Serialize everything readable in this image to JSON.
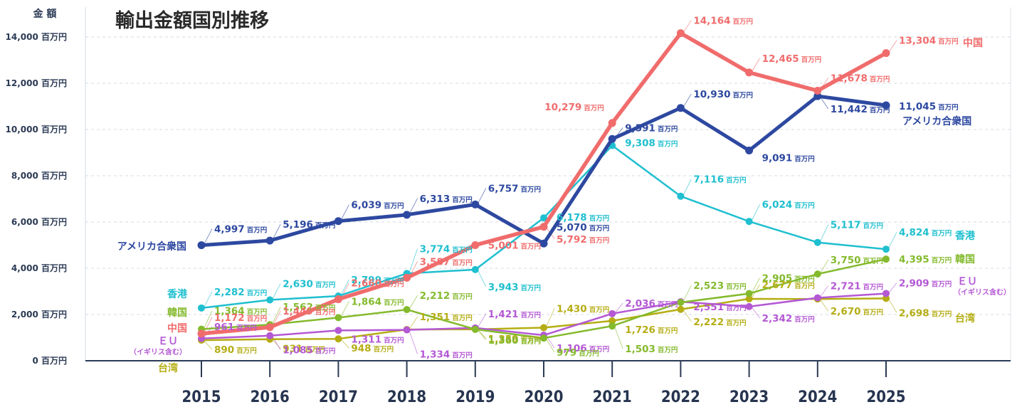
{
  "chart_data": {
    "type": "line",
    "title": "輸出金額国別推移",
    "ylabel": "金 額",
    "unit": "百万円",
    "ylim": [
      0,
      14000
    ],
    "yticks": [
      {
        "value": 0,
        "label": "0 百万円"
      },
      {
        "value": 2000,
        "label": "2,000 百万円"
      },
      {
        "value": 4000,
        "label": "4,000 百万円"
      },
      {
        "value": 6000,
        "label": "6,000 百万円"
      },
      {
        "value": 8000,
        "label": "8,000 百万円"
      },
      {
        "value": 10000,
        "label": "10,000 百万円"
      },
      {
        "value": 12000,
        "label": "12,000 百万円"
      },
      {
        "value": 14000,
        "label": "14,000 百万円"
      }
    ],
    "categories": [
      "2015",
      "2016",
      "2017",
      "2018",
      "2019",
      "2020",
      "2021",
      "2022",
      "2023",
      "2024",
      "2025"
    ],
    "series": [
      {
        "key": "taiwan",
        "name": "台湾",
        "color": "#b5ad14",
        "width": 2.5,
        "values": [
          890,
          931,
          948,
          1351,
          1359,
          1430,
          1726,
          2222,
          2677,
          2670,
          2698
        ],
        "labels": [
          "890",
          "931",
          "948",
          "1,351",
          "1,359",
          "1,430",
          "1,726",
          "2,222",
          "2,677",
          "2,670",
          "2,698"
        ]
      },
      {
        "key": "eu",
        "name": "ＥＵ",
        "note": "（イギリス含む）",
        "color": "#b458d4",
        "width": 2.5,
        "values": [
          961,
          1085,
          1311,
          1334,
          1421,
          1106,
          2036,
          2551,
          2342,
          2721,
          2909
        ],
        "labels": [
          "961",
          "1,085",
          "1,311",
          "1,334",
          "1,421",
          "1,106",
          "2,036",
          "2,551",
          "2,342",
          "2,721",
          "2,909"
        ]
      },
      {
        "key": "korea",
        "name": "韓国",
        "color": "#84ba2d",
        "width": 2.5,
        "values": [
          1364,
          1562,
          1864,
          2212,
          1360,
          979,
          1503,
          2523,
          2905,
          3750,
          4395
        ],
        "labels": [
          "1,364",
          "1,562",
          "1,864",
          "2,212",
          "1,360",
          "979",
          "1,503",
          "2,523",
          "2,905",
          "3,750",
          "4,395"
        ]
      },
      {
        "key": "hongkong",
        "name": "香港",
        "color": "#1fbfcf",
        "width": 2.5,
        "values": [
          2282,
          2630,
          2799,
          3774,
          3943,
          6178,
          9308,
          7116,
          6024,
          5117,
          4824
        ],
        "labels": [
          "2,282",
          "2,630",
          "2,799",
          "3,774",
          "3,943",
          "6,178",
          "9,308",
          "7,116",
          "6,024",
          "5,117",
          "4,824"
        ]
      },
      {
        "key": "usa",
        "name": "アメリカ合衆国",
        "color": "#2d48a0",
        "width": 5,
        "values": [
          4997,
          5196,
          6039,
          6313,
          6757,
          5070,
          9591,
          10930,
          9091,
          11442,
          11045
        ],
        "labels": [
          "4,997",
          "5,196",
          "6,039",
          "6,313",
          "6,757",
          "5,070",
          "9,591",
          "10,930",
          "9,091",
          "11,442",
          "11,045"
        ]
      },
      {
        "key": "china",
        "name": "中国",
        "color": "#f06c6c",
        "width": 5.5,
        "values": [
          1172,
          1449,
          2660,
          3587,
          5001,
          5792,
          10279,
          14164,
          12465,
          11678,
          13304
        ],
        "labels": [
          "1,172",
          "1,449",
          "2,660",
          "3,587",
          "5,001",
          "5,792",
          "10,279",
          "14,164",
          "12,465",
          "11,678",
          "13,304"
        ]
      }
    ]
  }
}
